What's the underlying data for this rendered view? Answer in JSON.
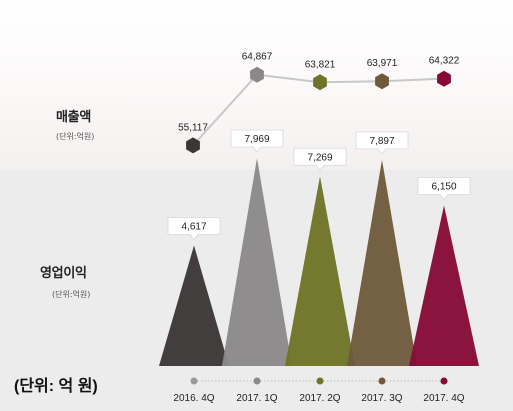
{
  "title": "",
  "unit_note": "(단위: 억 원)",
  "chart_data": [
    {
      "type": "line",
      "name": "매출액",
      "label": "매출액",
      "unit_label": "(단위:억원)",
      "categories": [
        "2016. 4Q",
        "2017. 1Q",
        "2017. 2Q",
        "2017. 3Q",
        "2017. 4Q"
      ],
      "values": [
        55117,
        64867,
        63821,
        63971,
        64322
      ],
      "value_labels": [
        "55,117",
        "64,867",
        "63,821",
        "63,971",
        "64,322"
      ],
      "colors": [
        "#3a3636",
        "#8a8888",
        "#6f7428",
        "#6e5a3a",
        "#850a35"
      ],
      "line_color": "#c8c8c8",
      "ylim": [
        52000,
        68000
      ],
      "grid": false
    },
    {
      "type": "bar",
      "name": "영업이익",
      "label": "영업이익",
      "unit_label": "(단위:억원)",
      "categories": [
        "2016. 4Q",
        "2017. 1Q",
        "2017. 2Q",
        "2017. 3Q",
        "2017. 4Q"
      ],
      "values": [
        4617,
        7969,
        7269,
        7897,
        6150
      ],
      "value_labels": [
        "4,617",
        "7,969",
        "7,269",
        "7,897",
        "6,150"
      ],
      "colors": [
        "#3a3636",
        "#8a8888",
        "#6f7428",
        "#6e5a3a",
        "#850a35"
      ],
      "ylim": [
        0,
        8500
      ],
      "grid": false
    }
  ]
}
